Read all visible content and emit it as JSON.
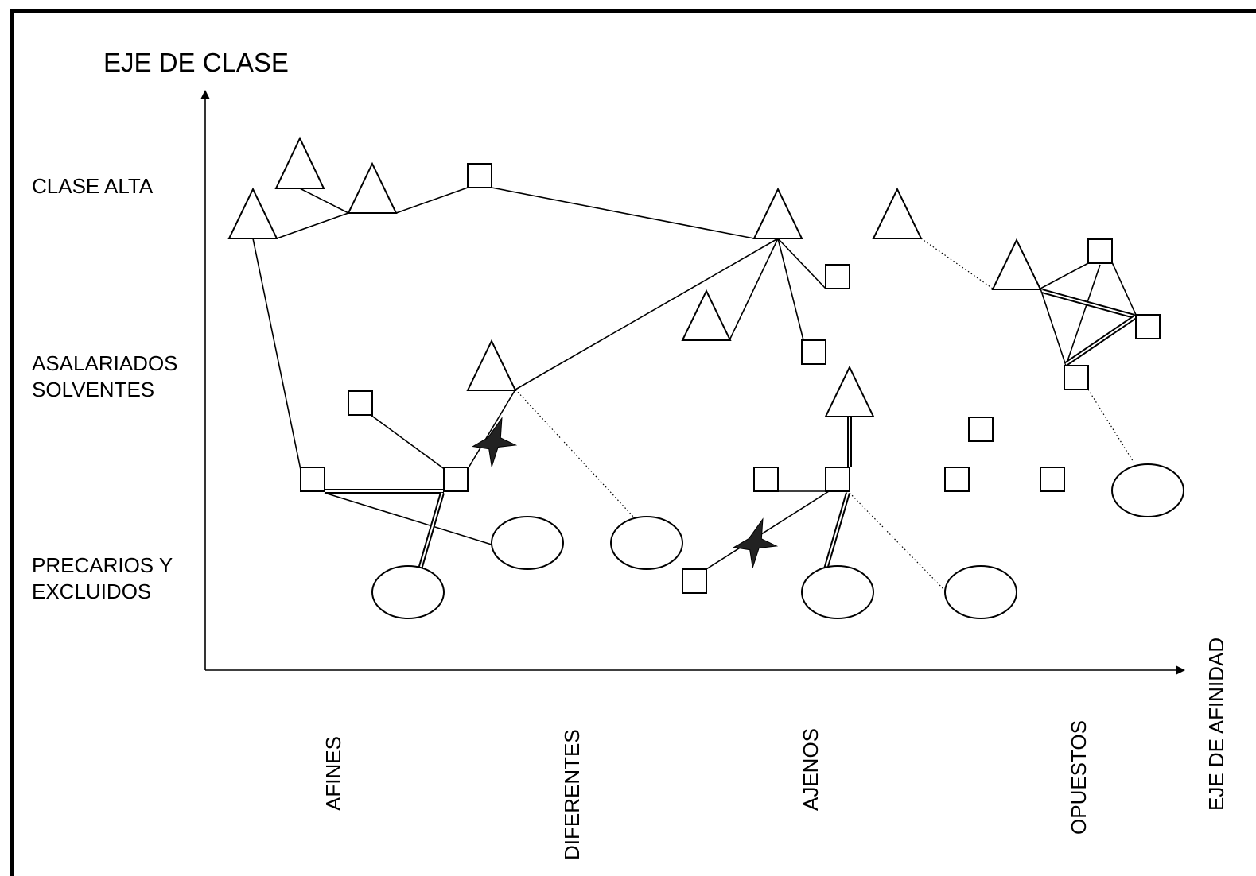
{
  "title": "EJE DE CLASE",
  "x_axis_title": "EJE DE AFINIDAD",
  "y_levels": [
    {
      "lines": [
        "CLASE ALTA"
      ]
    },
    {
      "lines": [
        "ASALARIADOS",
        "SOLVENTES"
      ]
    },
    {
      "lines": [
        "PRECARIOS Y",
        "EXCLUIDOS"
      ]
    }
  ],
  "x_categories": [
    "AFINES",
    "DIFERENTES",
    "AJENOS",
    "OPUESTOS"
  ]
}
